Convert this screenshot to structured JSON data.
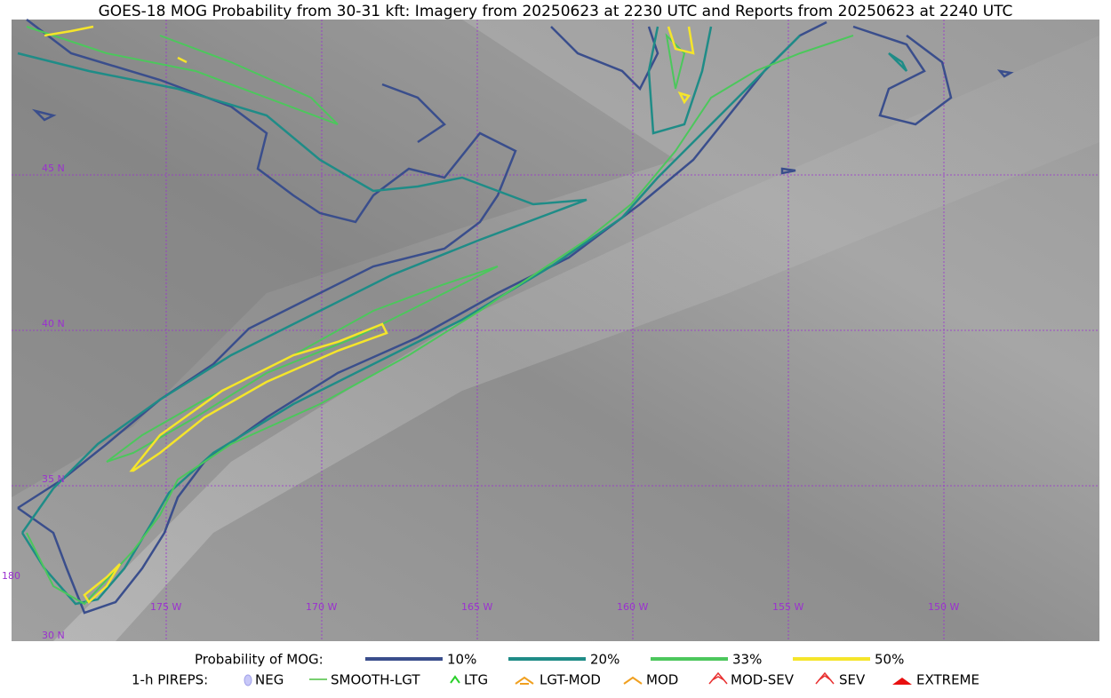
{
  "header": {
    "title": "GOES-18 MOG Probability from 30-31 kft: Imagery from 20250623 at 2230 UTC and Reports from 20250623 at 2240 UTC"
  },
  "map": {
    "lat_labels": [
      "45 N",
      "40 N",
      "35 N",
      "30 N"
    ],
    "lon_labels": [
      "180",
      "175 W",
      "170 W",
      "165 W",
      "160 W",
      "155 W",
      "150 W"
    ]
  },
  "legend": {
    "probability": {
      "title": "Probability of MOG:",
      "items": [
        {
          "label": "10%",
          "color": "#3a4e8c"
        },
        {
          "label": "20%",
          "color": "#1f8c87"
        },
        {
          "label": "33%",
          "color": "#4cc75c"
        },
        {
          "label": "50%",
          "color": "#f5e52a"
        }
      ]
    },
    "pireps": {
      "title": "1-h PIREPS:",
      "items": [
        {
          "label": "NEG"
        },
        {
          "label": "SMOOTH-LGT"
        },
        {
          "label": "LTG"
        },
        {
          "label": "LGT-MOD"
        },
        {
          "label": "MOD"
        },
        {
          "label": "MOD-SEV"
        },
        {
          "label": "SEV"
        },
        {
          "label": "EXTREME"
        }
      ]
    }
  }
}
